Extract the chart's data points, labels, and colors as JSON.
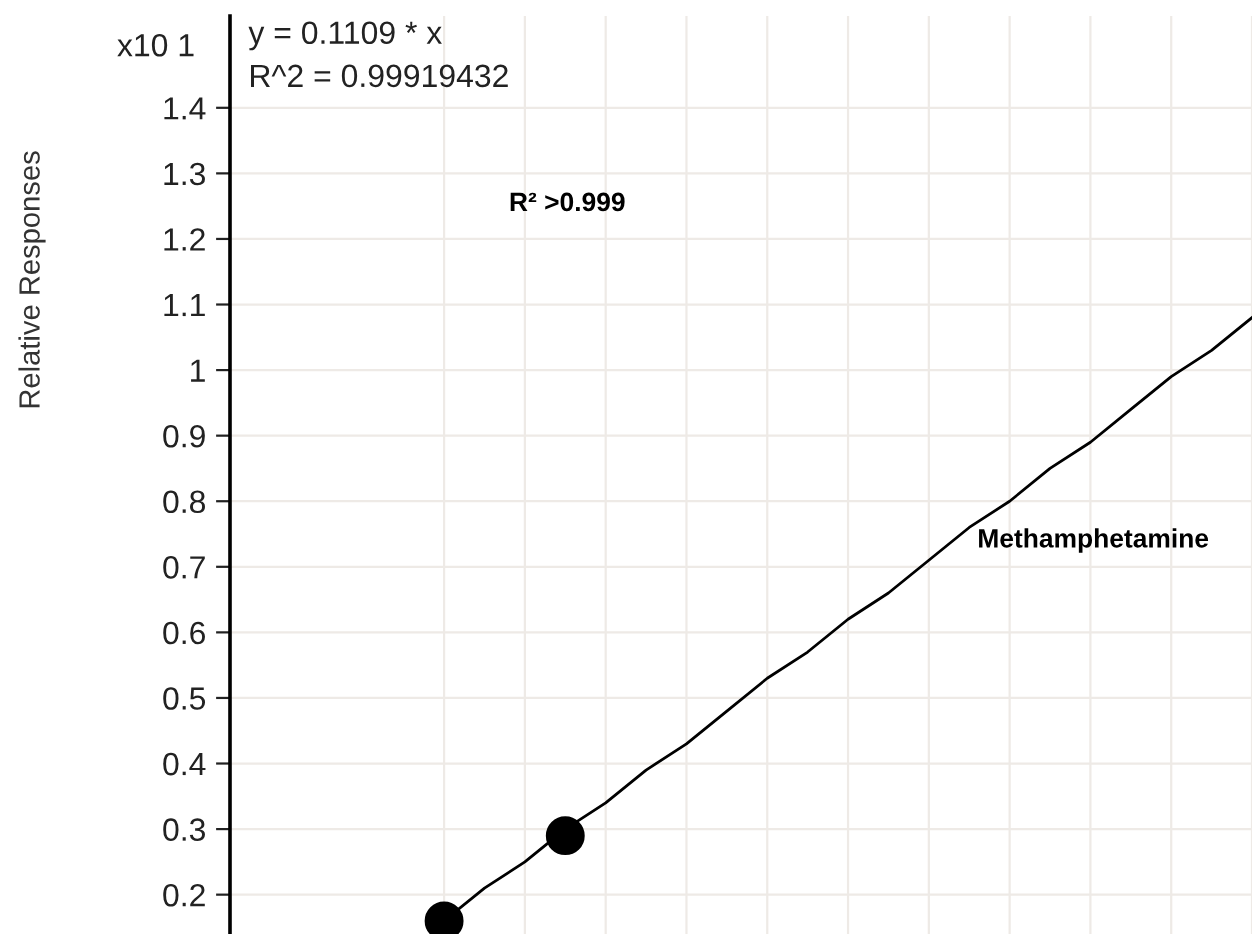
{
  "chart_data": {
    "type": "scatter",
    "ylabel": "Relative Responses",
    "annotations": [
      "x10 1",
      "y = 0.1109 * x",
      "R^2 = 0.99919432",
      "R² >0.999"
    ],
    "categories": [
      null,
      null,
      null,
      null,
      null,
      null,
      null,
      null,
      null,
      null,
      null,
      null,
      null,
      null,
      null,
      null,
      null,
      null,
      null,
      null,
      null
    ],
    "series": [
      {
        "type": "line",
        "name": "Methamphetamine",
        "color": "#000000",
        "marker": "none",
        "values": [
          0.16,
          0.21,
          0.25,
          0.3,
          0.34,
          0.39,
          0.43,
          0.48,
          0.53,
          0.57,
          0.62,
          0.66,
          0.71,
          0.76,
          0.8,
          0.85,
          0.89,
          0.94,
          0.99,
          1.03,
          1.08
        ]
      },
      {
        "color": "#000000",
        "marker": "circle",
        "values": [
          0.16,
          null,
          null,
          0.29,
          null,
          null,
          null,
          null,
          null,
          null,
          null,
          null,
          null,
          null,
          null,
          null,
          null,
          null,
          null,
          null,
          null
        ]
      }
    ],
    "ylim": [
      0.14,
      1.54
    ],
    "yticks": [
      0.2,
      0.3,
      0.4,
      0.5,
      0.6,
      0.7,
      0.8,
      0.9,
      1,
      1.1,
      1.2,
      1.3,
      1.4
    ],
    "grid": true,
    "tick_labels": "y"
  }
}
